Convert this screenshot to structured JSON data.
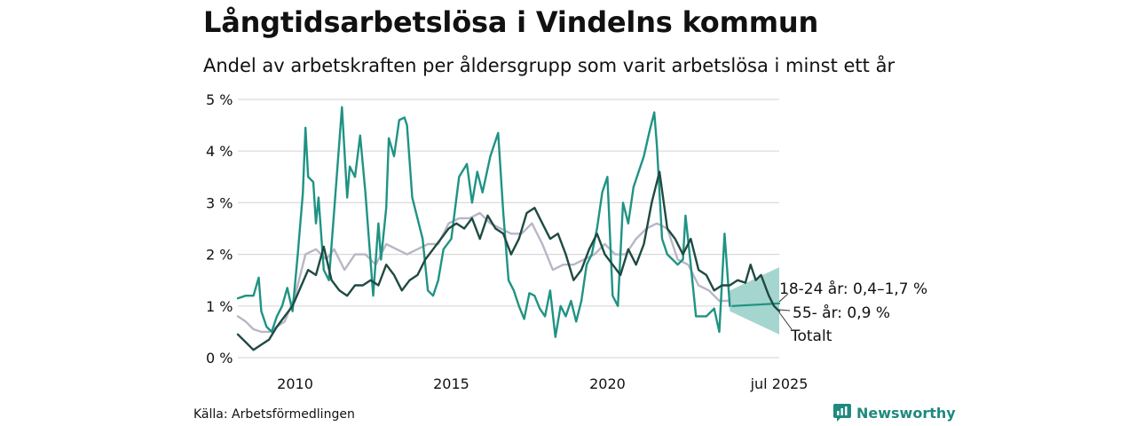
{
  "title": "Långtidsarbetslösa i Vindelns kommun",
  "subtitle": "Andel av arbetskraften per åldersgrupp som varit arbetslösa i minst ett år",
  "source": "Källa: Arbetsförmedlingen",
  "brand": {
    "label": "Newsworthy",
    "icon": "newsworthy-logo-icon"
  },
  "colors": {
    "young": "#1f9384",
    "old": "#b9b6c6",
    "total": "#1f4a42",
    "band": "#9fd3cb",
    "grid": "#d9d9d9"
  },
  "chart_data": {
    "type": "line",
    "ylim": [
      0,
      5
    ],
    "yticks": [
      0,
      1,
      2,
      3,
      4,
      5
    ],
    "ytick_labels": [
      "0 %",
      "1 %",
      "2 %",
      "3 %",
      "4 %",
      "5 %"
    ],
    "xlim": [
      "2008-03",
      "2025-07"
    ],
    "xticks": [
      "2010-01",
      "2015-01",
      "2020-01",
      "2025-07"
    ],
    "xtick_labels": [
      "2010",
      "2015",
      "2020",
      "jul 2025"
    ],
    "grid": true,
    "series": [
      {
        "key": "young",
        "color": "#1f9384",
        "points": [
          [
            "2008-03",
            1.15
          ],
          [
            "2008-06",
            1.2
          ],
          [
            "2008-09",
            1.2
          ],
          [
            "2008-11",
            1.55
          ],
          [
            "2008-12",
            0.9
          ],
          [
            "2009-02",
            0.6
          ],
          [
            "2009-04",
            0.5
          ],
          [
            "2009-06",
            0.8
          ],
          [
            "2009-08",
            1.0
          ],
          [
            "2009-10",
            1.35
          ],
          [
            "2009-12",
            0.9
          ],
          [
            "2010-02",
            2.0
          ],
          [
            "2010-04",
            3.2
          ],
          [
            "2010-05",
            4.45
          ],
          [
            "2010-06",
            3.5
          ],
          [
            "2010-08",
            3.4
          ],
          [
            "2010-09",
            2.6
          ],
          [
            "2010-10",
            3.1
          ],
          [
            "2010-12",
            1.7
          ],
          [
            "2011-02",
            1.5
          ],
          [
            "2011-05",
            3.5
          ],
          [
            "2011-07",
            4.85
          ],
          [
            "2011-09",
            3.1
          ],
          [
            "2011-10",
            3.7
          ],
          [
            "2011-12",
            3.5
          ],
          [
            "2012-02",
            4.3
          ],
          [
            "2012-04",
            3.2
          ],
          [
            "2012-07",
            1.2
          ],
          [
            "2012-09",
            2.6
          ],
          [
            "2012-10",
            1.9
          ],
          [
            "2012-12",
            2.9
          ],
          [
            "2013-01",
            4.25
          ],
          [
            "2013-03",
            3.9
          ],
          [
            "2013-05",
            4.6
          ],
          [
            "2013-07",
            4.65
          ],
          [
            "2013-08",
            4.5
          ],
          [
            "2013-10",
            3.1
          ],
          [
            "2014-02",
            2.3
          ],
          [
            "2014-04",
            1.3
          ],
          [
            "2014-06",
            1.2
          ],
          [
            "2014-08",
            1.5
          ],
          [
            "2014-10",
            2.1
          ],
          [
            "2015-01",
            2.3
          ],
          [
            "2015-04",
            3.5
          ],
          [
            "2015-07",
            3.75
          ],
          [
            "2015-09",
            3.0
          ],
          [
            "2015-11",
            3.6
          ],
          [
            "2016-01",
            3.2
          ],
          [
            "2016-04",
            3.9
          ],
          [
            "2016-07",
            4.35
          ],
          [
            "2016-09",
            2.8
          ],
          [
            "2016-11",
            1.5
          ],
          [
            "2017-01",
            1.3
          ],
          [
            "2017-03",
            1.0
          ],
          [
            "2017-05",
            0.75
          ],
          [
            "2017-07",
            1.25
          ],
          [
            "2017-09",
            1.2
          ],
          [
            "2017-11",
            0.95
          ],
          [
            "2018-01",
            0.8
          ],
          [
            "2018-03",
            1.3
          ],
          [
            "2018-05",
            0.4
          ],
          [
            "2018-07",
            1.0
          ],
          [
            "2018-09",
            0.8
          ],
          [
            "2018-11",
            1.1
          ],
          [
            "2019-01",
            0.7
          ],
          [
            "2019-03",
            1.1
          ],
          [
            "2019-05",
            1.8
          ],
          [
            "2019-07",
            2.0
          ],
          [
            "2019-09",
            2.5
          ],
          [
            "2019-11",
            3.2
          ],
          [
            "2020-01",
            3.5
          ],
          [
            "2020-03",
            1.2
          ],
          [
            "2020-05",
            1.0
          ],
          [
            "2020-07",
            3.0
          ],
          [
            "2020-09",
            2.6
          ],
          [
            "2020-11",
            3.3
          ],
          [
            "2021-01",
            3.6
          ],
          [
            "2021-03",
            3.9
          ],
          [
            "2021-05",
            4.35
          ],
          [
            "2021-07",
            4.75
          ],
          [
            "2021-08",
            4.1
          ],
          [
            "2021-10",
            2.3
          ],
          [
            "2021-12",
            2.0
          ],
          [
            "2022-02",
            1.9
          ],
          [
            "2022-04",
            1.8
          ],
          [
            "2022-06",
            1.9
          ],
          [
            "2022-07",
            2.75
          ],
          [
            "2022-09",
            1.8
          ],
          [
            "2022-11",
            0.8
          ],
          [
            "2023-03",
            0.8
          ],
          [
            "2023-06",
            0.95
          ],
          [
            "2023-08",
            0.5
          ],
          [
            "2023-10",
            2.4
          ],
          [
            "2023-12",
            1.0
          ]
        ]
      },
      {
        "key": "old",
        "color": "#b9b6c6",
        "points": [
          [
            "2008-03",
            0.8
          ],
          [
            "2008-06",
            0.7
          ],
          [
            "2008-09",
            0.55
          ],
          [
            "2008-12",
            0.5
          ],
          [
            "2009-03",
            0.5
          ],
          [
            "2009-06",
            0.6
          ],
          [
            "2009-09",
            0.7
          ],
          [
            "2010-01",
            1.2
          ],
          [
            "2010-05",
            2.0
          ],
          [
            "2010-09",
            2.1
          ],
          [
            "2011-01",
            1.9
          ],
          [
            "2011-04",
            2.1
          ],
          [
            "2011-08",
            1.7
          ],
          [
            "2011-12",
            2.0
          ],
          [
            "2012-04",
            2.0
          ],
          [
            "2012-08",
            1.8
          ],
          [
            "2012-12",
            2.2
          ],
          [
            "2013-04",
            2.1
          ],
          [
            "2013-08",
            2.0
          ],
          [
            "2013-12",
            2.1
          ],
          [
            "2014-04",
            2.2
          ],
          [
            "2014-08",
            2.2
          ],
          [
            "2014-12",
            2.6
          ],
          [
            "2015-04",
            2.7
          ],
          [
            "2015-08",
            2.7
          ],
          [
            "2015-12",
            2.8
          ],
          [
            "2016-04",
            2.6
          ],
          [
            "2016-08",
            2.5
          ],
          [
            "2016-12",
            2.4
          ],
          [
            "2017-04",
            2.4
          ],
          [
            "2017-08",
            2.6
          ],
          [
            "2017-12",
            2.2
          ],
          [
            "2018-04",
            1.7
          ],
          [
            "2018-08",
            1.8
          ],
          [
            "2018-12",
            1.8
          ],
          [
            "2019-04",
            1.9
          ],
          [
            "2019-08",
            2.0
          ],
          [
            "2019-12",
            2.2
          ],
          [
            "2020-04",
            2.0
          ],
          [
            "2020-08",
            2.0
          ],
          [
            "2020-12",
            2.3
          ],
          [
            "2021-04",
            2.5
          ],
          [
            "2021-08",
            2.6
          ],
          [
            "2021-12",
            2.5
          ],
          [
            "2022-04",
            1.9
          ],
          [
            "2022-08",
            1.8
          ],
          [
            "2022-12",
            1.4
          ],
          [
            "2023-04",
            1.3
          ],
          [
            "2023-08",
            1.1
          ],
          [
            "2023-12",
            1.1
          ]
        ]
      },
      {
        "key": "total",
        "color": "#1f4a42",
        "points": [
          [
            "2008-03",
            0.45
          ],
          [
            "2008-06",
            0.3
          ],
          [
            "2008-09",
            0.15
          ],
          [
            "2008-12",
            0.25
          ],
          [
            "2009-03",
            0.35
          ],
          [
            "2009-06",
            0.6
          ],
          [
            "2009-09",
            0.8
          ],
          [
            "2009-12",
            1.0
          ],
          [
            "2010-03",
            1.35
          ],
          [
            "2010-06",
            1.7
          ],
          [
            "2010-09",
            1.6
          ],
          [
            "2010-12",
            2.15
          ],
          [
            "2011-03",
            1.5
          ],
          [
            "2011-06",
            1.3
          ],
          [
            "2011-09",
            1.2
          ],
          [
            "2011-12",
            1.4
          ],
          [
            "2012-03",
            1.4
          ],
          [
            "2012-06",
            1.5
          ],
          [
            "2012-09",
            1.4
          ],
          [
            "2012-12",
            1.8
          ],
          [
            "2013-03",
            1.6
          ],
          [
            "2013-06",
            1.3
          ],
          [
            "2013-09",
            1.5
          ],
          [
            "2013-12",
            1.6
          ],
          [
            "2014-03",
            1.9
          ],
          [
            "2014-06",
            2.1
          ],
          [
            "2014-09",
            2.3
          ],
          [
            "2014-12",
            2.5
          ],
          [
            "2015-03",
            2.6
          ],
          [
            "2015-06",
            2.5
          ],
          [
            "2015-09",
            2.7
          ],
          [
            "2015-12",
            2.3
          ],
          [
            "2016-03",
            2.75
          ],
          [
            "2016-06",
            2.5
          ],
          [
            "2016-09",
            2.4
          ],
          [
            "2016-12",
            2.0
          ],
          [
            "2017-03",
            2.3
          ],
          [
            "2017-06",
            2.8
          ],
          [
            "2017-09",
            2.9
          ],
          [
            "2017-12",
            2.6
          ],
          [
            "2018-03",
            2.3
          ],
          [
            "2018-06",
            2.4
          ],
          [
            "2018-09",
            2.0
          ],
          [
            "2018-12",
            1.5
          ],
          [
            "2019-03",
            1.7
          ],
          [
            "2019-06",
            2.1
          ],
          [
            "2019-09",
            2.4
          ],
          [
            "2019-12",
            2.0
          ],
          [
            "2020-03",
            1.8
          ],
          [
            "2020-06",
            1.6
          ],
          [
            "2020-09",
            2.1
          ],
          [
            "2020-12",
            1.8
          ],
          [
            "2021-03",
            2.2
          ],
          [
            "2021-06",
            3.0
          ],
          [
            "2021-09",
            3.6
          ],
          [
            "2021-12",
            2.5
          ],
          [
            "2022-03",
            2.3
          ],
          [
            "2022-06",
            2.0
          ],
          [
            "2022-09",
            2.3
          ],
          [
            "2022-12",
            1.7
          ],
          [
            "2023-03",
            1.6
          ],
          [
            "2023-06",
            1.3
          ],
          [
            "2023-09",
            1.4
          ],
          [
            "2023-12",
            1.4
          ],
          [
            "2024-03",
            1.5
          ],
          [
            "2024-06",
            1.45
          ],
          [
            "2024-08",
            1.8
          ],
          [
            "2024-10",
            1.5
          ],
          [
            "2024-12",
            1.6
          ],
          [
            "2025-03",
            1.2
          ],
          [
            "2025-05",
            1.0
          ],
          [
            "2025-07",
            0.9
          ]
        ]
      },
      {
        "key": "young-forecast",
        "color": "#1f9384",
        "points": [
          [
            "2024-01",
            1.0
          ],
          [
            "2025-07",
            1.05
          ]
        ]
      }
    ],
    "band": {
      "label": "18-24 år",
      "color": "#9fd3cb",
      "upper": [
        [
          "2023-12",
          1.3
        ],
        [
          "2025-07",
          1.75
        ]
      ],
      "lower": [
        [
          "2023-12",
          0.9
        ],
        [
          "2025-07",
          0.45
        ]
      ]
    },
    "annotations": [
      {
        "key": "young",
        "text": "18-24 år: 0,4–1,7 %",
        "value": 1.3
      },
      {
        "key": "old",
        "text": "55- år: 0,9 %",
        "value": 0.9
      },
      {
        "key": "total",
        "text": "Totalt",
        "value": 0.9
      }
    ]
  }
}
